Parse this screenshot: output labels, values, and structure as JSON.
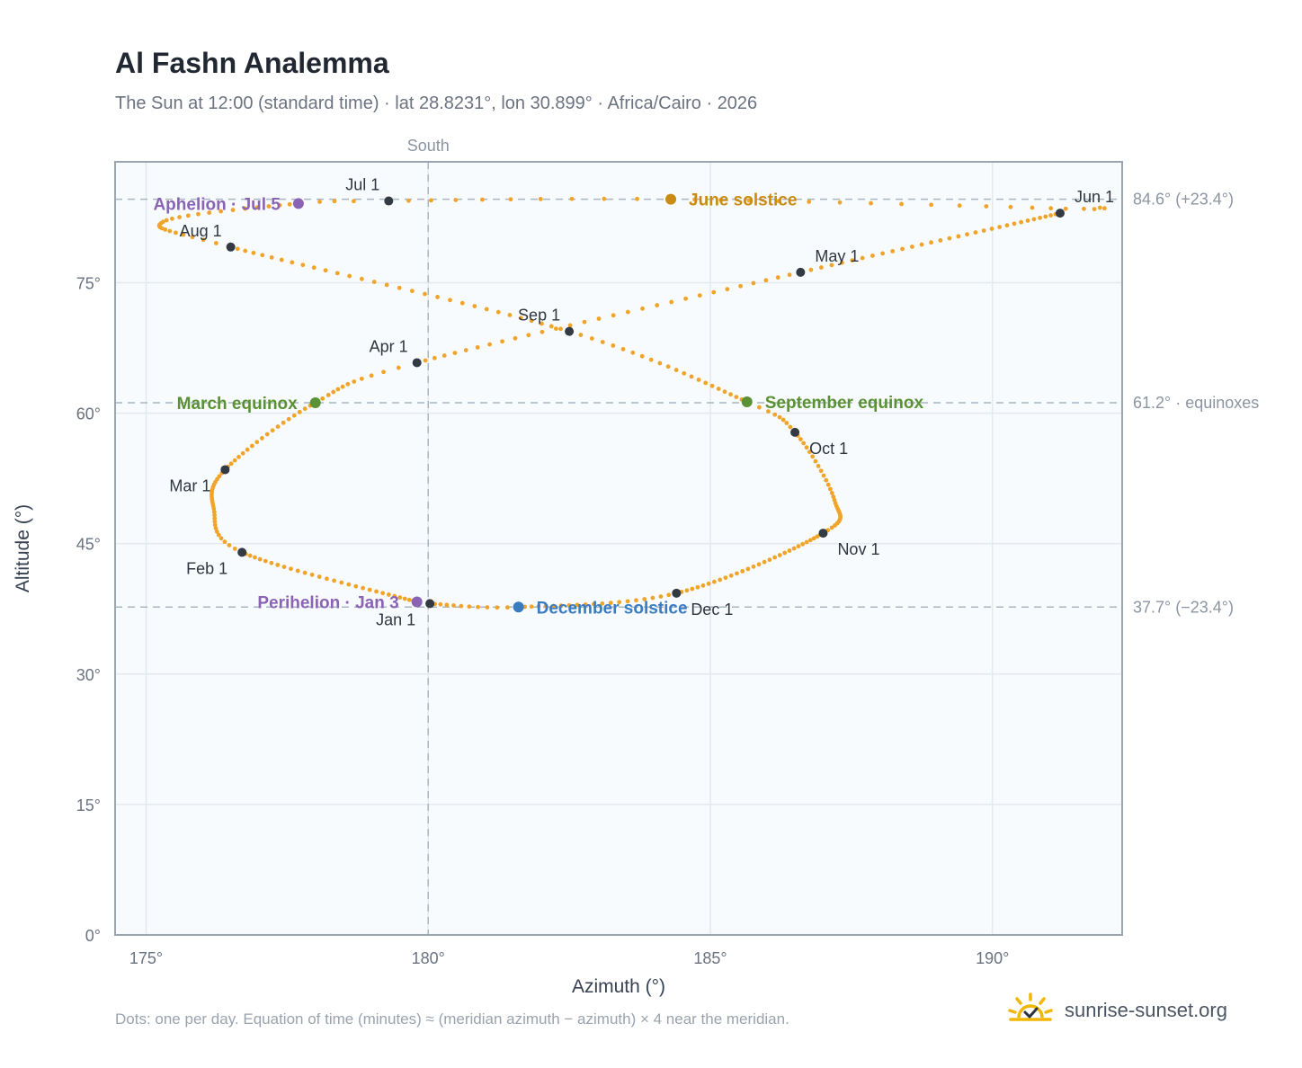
{
  "header": {
    "title": "Al Fashn Analemma",
    "subtitle": "The Sun at 12:00 (standard time) · lat 28.8231°, lon 30.899° · Africa/Cairo · 2026"
  },
  "footer": {
    "note": "Dots: one per day. Equation of time (minutes) ≈ (meridian azimuth − azimuth) × 4 near the meridian.",
    "brand": "sunrise-sunset.org",
    "brand_icon": "sun-logo-icon"
  },
  "colors": {
    "analemma": "#f0a42a",
    "month_marker": "#333a44",
    "june_solstice": "#c98c10",
    "december_solstice": "#3a7cc2",
    "equinox": "#5a9134",
    "apsis": "#8a64b4",
    "plot_bg": "#f8fbfd",
    "grid": "#e4e9ee",
    "ref_line": "#a9b6c2"
  },
  "chart_data": {
    "type": "scatter",
    "xlabel": "Azimuth (°)",
    "ylabel": "Altitude (°)",
    "xlim": [
      174.45,
      192.3
    ],
    "ylim": [
      0,
      88.9
    ],
    "xticks": [
      175,
      180,
      185,
      190
    ],
    "xtick_labels": [
      "175°",
      "180°",
      "185°",
      "190°"
    ],
    "yticks": [
      0,
      15,
      30,
      45,
      60,
      75
    ],
    "ytick_labels": [
      "0°",
      "15°",
      "30°",
      "45°",
      "60°",
      "75°"
    ],
    "grid": true,
    "meridian": {
      "azimuth": 180,
      "label": "South"
    },
    "reference_lines": [
      {
        "altitude": 84.6,
        "label": "84.6° (+23.4°)"
      },
      {
        "altitude": 61.2,
        "label": "61.2° · equinoxes"
      },
      {
        "altitude": 37.7,
        "label": "37.7° (−23.4°)"
      }
    ],
    "analemma_anchors": [
      {
        "day": 1,
        "azimuth": 180.03,
        "altitude": 38.1
      },
      {
        "day": 3,
        "azimuth": 179.8,
        "altitude": 38.3
      },
      {
        "day": 32,
        "azimuth": 176.7,
        "altitude": 44.0
      },
      {
        "day": 45,
        "azimuth": 176.2,
        "altitude": 49.0
      },
      {
        "day": 60,
        "azimuth": 176.4,
        "altitude": 53.5
      },
      {
        "day": 79,
        "azimuth": 178.0,
        "altitude": 61.2
      },
      {
        "day": 91,
        "azimuth": 179.8,
        "altitude": 65.8
      },
      {
        "day": 121,
        "azimuth": 186.6,
        "altitude": 76.2
      },
      {
        "day": 152,
        "azimuth": 191.2,
        "altitude": 83.0
      },
      {
        "day": 157,
        "azimuth": 191.3,
        "altitude": 83.5
      },
      {
        "day": 172,
        "azimuth": 184.3,
        "altitude": 84.6
      },
      {
        "day": 182,
        "azimuth": 179.3,
        "altitude": 84.4
      },
      {
        "day": 186,
        "azimuth": 177.7,
        "altitude": 84.1
      },
      {
        "day": 200,
        "azimuth": 175.3,
        "altitude": 82.0
      },
      {
        "day": 213,
        "azimuth": 176.5,
        "altitude": 79.1
      },
      {
        "day": 244,
        "azimuth": 182.5,
        "altitude": 69.4
      },
      {
        "day": 266,
        "azimuth": 185.65,
        "altitude": 61.3
      },
      {
        "day": 274,
        "azimuth": 186.5,
        "altitude": 57.8
      },
      {
        "day": 290,
        "azimuth": 187.2,
        "altitude": 50.0
      },
      {
        "day": 305,
        "azimuth": 187.0,
        "altitude": 46.2
      },
      {
        "day": 335,
        "azimuth": 184.4,
        "altitude": 39.3
      },
      {
        "day": 355,
        "azimuth": 181.6,
        "altitude": 37.7
      },
      {
        "day": 366,
        "azimuth": 180.03,
        "altitude": 38.1
      }
    ],
    "month_markers": [
      {
        "label": "Jan 1",
        "azimuth": 180.03,
        "altitude": 38.1,
        "anchor": "below-left"
      },
      {
        "label": "Feb 1",
        "azimuth": 176.7,
        "altitude": 44.0,
        "anchor": "below-left"
      },
      {
        "label": "Mar 1",
        "azimuth": 176.4,
        "altitude": 53.5,
        "anchor": "below-left"
      },
      {
        "label": "Apr 1",
        "azimuth": 179.8,
        "altitude": 65.8,
        "anchor": "above-left"
      },
      {
        "label": "May 1",
        "azimuth": 186.6,
        "altitude": 76.2,
        "anchor": "above-right"
      },
      {
        "label": "Jun 1",
        "azimuth": 191.2,
        "altitude": 83.0,
        "anchor": "above-right"
      },
      {
        "label": "Jul 1",
        "azimuth": 179.3,
        "altitude": 84.4,
        "anchor": "above-left"
      },
      {
        "label": "Aug 1",
        "azimuth": 176.5,
        "altitude": 79.1,
        "anchor": "above-left"
      },
      {
        "label": "Sep 1",
        "azimuth": 182.5,
        "altitude": 69.4,
        "anchor": "above-left"
      },
      {
        "label": "Oct 1",
        "azimuth": 186.5,
        "altitude": 57.8,
        "anchor": "below-right"
      },
      {
        "label": "Nov 1",
        "azimuth": 187.0,
        "altitude": 46.2,
        "anchor": "below-right"
      },
      {
        "label": "Dec 1",
        "azimuth": 184.4,
        "altitude": 39.3,
        "anchor": "below-right"
      }
    ],
    "events": [
      {
        "label": "June solstice",
        "azimuth": 184.3,
        "altitude": 84.6,
        "color": "#c98c10",
        "side": "right"
      },
      {
        "label": "December solstice",
        "azimuth": 181.6,
        "altitude": 37.7,
        "color": "#3a7cc2",
        "side": "right"
      },
      {
        "label": "March equinox",
        "azimuth": 178.0,
        "altitude": 61.2,
        "color": "#5a9134",
        "side": "left"
      },
      {
        "label": "September equinox",
        "azimuth": 185.65,
        "altitude": 61.3,
        "color": "#5a9134",
        "side": "right"
      },
      {
        "label": "Aphelion · Jul 5",
        "azimuth": 177.7,
        "altitude": 84.1,
        "color": "#8a64b4",
        "side": "left"
      },
      {
        "label": "Perihelion · Jan 3",
        "azimuth": 179.8,
        "altitude": 38.3,
        "color": "#8a64b4",
        "side": "left"
      }
    ]
  }
}
